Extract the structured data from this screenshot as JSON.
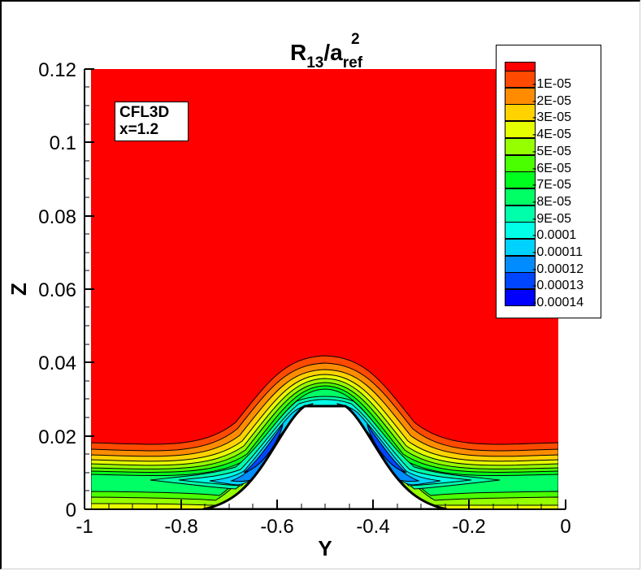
{
  "chart_data": {
    "type": "heatmap",
    "subtype": "filled-contour",
    "title": "R13/aref^2",
    "title_parts": {
      "base": "R",
      "sub1": "13",
      "slash": "/a",
      "sub2": "ref",
      "sup": "2"
    },
    "xlabel": "Y",
    "ylabel": "Z",
    "xlim": [
      -1,
      0
    ],
    "ylim": [
      0,
      0.12
    ],
    "x_ticks": [
      "-1",
      "-0.8",
      "-0.6",
      "-0.4",
      "-0.2",
      "0"
    ],
    "y_ticks": [
      "0",
      "0.02",
      "0.04",
      "0.06",
      "0.08",
      "0.1",
      "0.12"
    ],
    "annotation": [
      "CFL3D",
      "x=1.2"
    ],
    "legend": {
      "position": "upper-right",
      "levels": [
        {
          "label": "-1E-05",
          "color": "#ff0000"
        },
        {
          "label": "-2E-05",
          "color": "#ff4a00"
        },
        {
          "label": "-3E-05",
          "color": "#ff8c00"
        },
        {
          "label": "-4E-05",
          "color": "#ffd200"
        },
        {
          "label": "-5E-05",
          "color": "#e6ff00"
        },
        {
          "label": "-6E-05",
          "color": "#96ff00"
        },
        {
          "label": "-7E-05",
          "color": "#4aff00"
        },
        {
          "label": "-8E-05",
          "color": "#00ff1e"
        },
        {
          "label": "-9E-05",
          "color": "#00ff64"
        },
        {
          "label": "-0.0001",
          "color": "#00ffaa"
        },
        {
          "label": "-0.00011",
          "color": "#00ffe6"
        },
        {
          "label": "-0.00012",
          "color": "#00d2ff"
        },
        {
          "label": "-0.00013",
          "color": "#008cff"
        },
        {
          "label": "-0.00014",
          "color": "#0046ff"
        }
      ],
      "min_color": "#0000ff"
    },
    "features": {
      "bump_center_y": -0.5,
      "bump_peak_z": 0.028,
      "outer_contour_peak_z": 0.042,
      "flat_region_boundary_layer_top_z": 0.018,
      "min_value_regions": "two elongated lobes on bump flanks near y=-0.62 and y=-0.38, z≈0.015"
    },
    "grid": false
  }
}
